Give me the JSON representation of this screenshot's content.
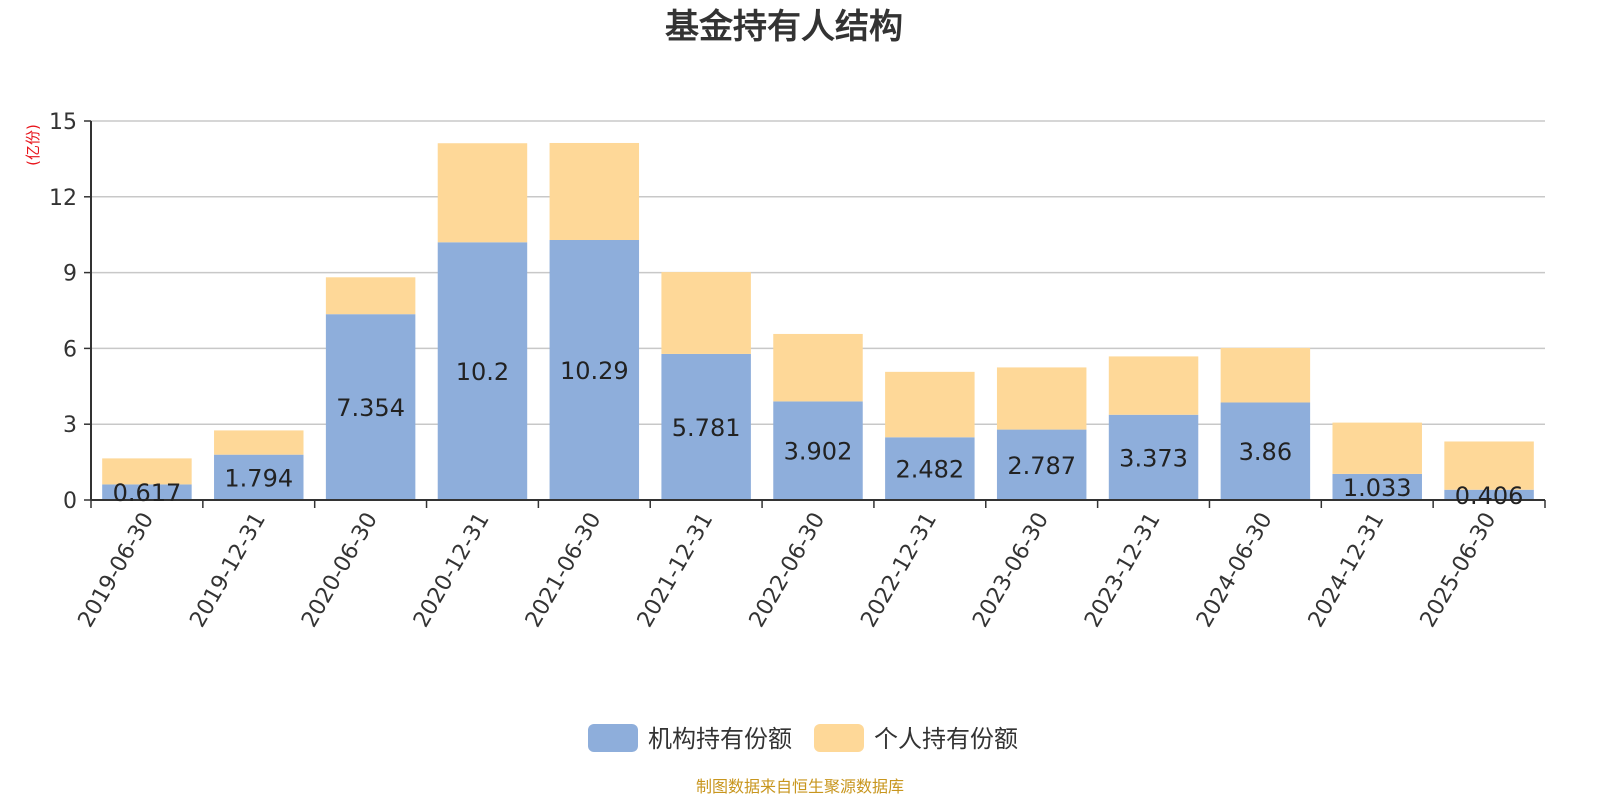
{
  "chart_data": {
    "type": "bar",
    "stacked": true,
    "title": "基金持有人结构",
    "ylabel": "(亿份)",
    "ylim": [
      0,
      15
    ],
    "yticks": [
      0,
      3,
      6,
      9,
      12,
      15
    ],
    "grid": true,
    "legend_position": "bottom",
    "categories": [
      "2019-06-30",
      "2019-12-31",
      "2020-06-30",
      "2020-12-31",
      "2021-06-30",
      "2021-12-31",
      "2022-06-30",
      "2022-12-31",
      "2023-06-30",
      "2023-12-31",
      "2024-06-30",
      "2024-12-31",
      "2025-06-30"
    ],
    "series": [
      {
        "name": "机构持有份额",
        "color": "#8eaedb",
        "values": [
          0.617,
          1.794,
          7.354,
          10.2,
          10.29,
          5.781,
          3.902,
          2.482,
          2.787,
          3.373,
          3.86,
          1.033,
          0.406
        ],
        "labels": [
          "0.617",
          "1.794",
          "7.354",
          "10.2",
          "10.29",
          "5.781",
          "3.902",
          "2.482",
          "2.787",
          "3.373",
          "3.86",
          "1.033",
          "0.406"
        ]
      },
      {
        "name": "个人持有份额",
        "color": "#fed898",
        "values": [
          1.03,
          0.96,
          1.46,
          3.92,
          3.84,
          3.24,
          2.67,
          2.59,
          2.46,
          2.31,
          2.16,
          2.03,
          1.91
        ]
      }
    ],
    "source": "制图数据来自恒生聚源数据库"
  }
}
